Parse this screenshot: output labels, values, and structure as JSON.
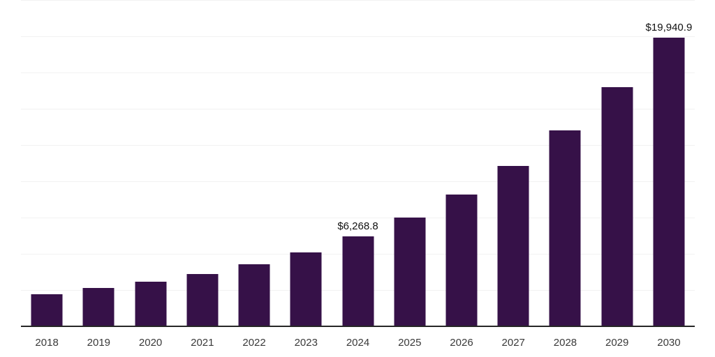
{
  "chart_data": {
    "type": "bar",
    "title": "",
    "xlabel": "",
    "ylabel": "",
    "categories": [
      "2018",
      "2019",
      "2020",
      "2021",
      "2022",
      "2023",
      "2024",
      "2025",
      "2026",
      "2027",
      "2028",
      "2029",
      "2030"
    ],
    "values": [
      2260,
      2690,
      3125,
      3655,
      4325,
      5145,
      6268.8,
      7550,
      9150,
      11100,
      13550,
      16540,
      19940.9
    ],
    "data_labels": {
      "2024": "$6,268.8",
      "2030": "$19,940.9"
    },
    "ylim": [
      0,
      22500
    ],
    "grid_step": 2500,
    "grid": "horizontal-only",
    "legend": "none",
    "y_axis_labels": "none",
    "bar_color": "#361148",
    "axis_line_color": "#262626",
    "gridline_color": "#f2f2f2",
    "data_label_color": "#111111",
    "tick_label_color": "#3a3a3a",
    "background_color": "#ffffff"
  }
}
